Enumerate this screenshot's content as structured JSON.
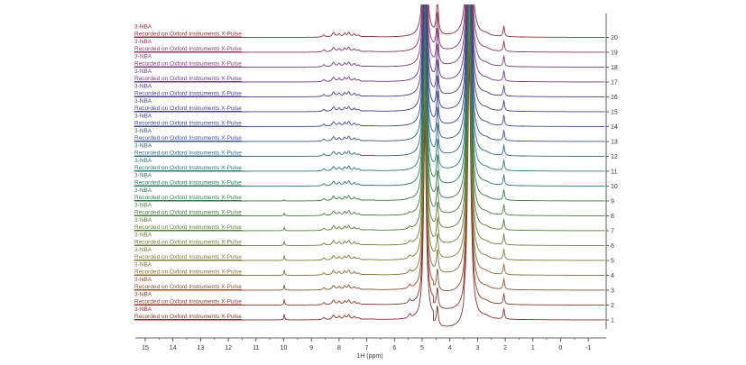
{
  "chart_data": {
    "type": "line",
    "title": "",
    "xlabel": "1H (ppm)",
    "ylabel": "",
    "xlim": [
      15.4,
      -1.6
    ],
    "xticks": [
      "15",
      "14",
      "13",
      "12",
      "11",
      "10",
      "9",
      "8",
      "7",
      "6",
      "5",
      "4",
      "3",
      "2",
      "1",
      "0",
      "-1"
    ],
    "trace_title": "3-NBA",
    "trace_subtitle": "Recorded on Oxford Instruments X-Pulse",
    "peaks": [
      {
        "ppm": 8.55,
        "height": 0.35,
        "width": 0.05
      },
      {
        "ppm": 8.2,
        "height": 0.7,
        "width": 0.06
      },
      {
        "ppm": 8.0,
        "height": 0.5,
        "width": 0.05
      },
      {
        "ppm": 7.8,
        "height": 0.55,
        "width": 0.05
      },
      {
        "ppm": 7.65,
        "height": 0.7,
        "width": 0.05
      },
      {
        "ppm": 7.45,
        "height": 0.45,
        "width": 0.05
      },
      {
        "ppm": 7.3,
        "height": 0.25,
        "width": 0.05
      },
      {
        "ppm": 6.9,
        "height": 0.1,
        "width": 0.25
      },
      {
        "ppm": 4.9,
        "height": 30,
        "width": 0.06
      },
      {
        "ppm": 4.45,
        "height": 3,
        "width": 0.04
      },
      {
        "ppm": 3.3,
        "height": 40,
        "width": 0.07
      },
      {
        "ppm": 2.7,
        "height": 0.3,
        "width": 0.15
      },
      {
        "ppm": 2.05,
        "height": 1.6,
        "width": 0.03
      }
    ],
    "transient_peaks": [
      {
        "ppm": 9.98,
        "height": 0.9,
        "width": 0.02
      },
      {
        "ppm": 5.45,
        "height": 0.6,
        "width": 0.05
      }
    ],
    "series": [
      {
        "name": "1",
        "color": "#8b2e2a",
        "transient": 1.0
      },
      {
        "name": "2",
        "color": "#8a3a2a",
        "transient": 0.95
      },
      {
        "name": "3",
        "color": "#8a5030",
        "transient": 0.9
      },
      {
        "name": "4",
        "color": "#8a6a35",
        "transient": 0.85
      },
      {
        "name": "5",
        "color": "#7f7a35",
        "transient": 0.8
      },
      {
        "name": "6",
        "color": "#6a7e35",
        "transient": 0.7
      },
      {
        "name": "7",
        "color": "#557e38",
        "transient": 0.6
      },
      {
        "name": "8",
        "color": "#447c3c",
        "transient": 0.45
      },
      {
        "name": "9",
        "color": "#357a45",
        "transient": 0.2
      },
      {
        "name": "10",
        "color": "#2a7a5a",
        "transient": 0.05
      },
      {
        "name": "11",
        "color": "#2a7a7a",
        "transient": 0
      },
      {
        "name": "12",
        "color": "#2e6a88",
        "transient": 0
      },
      {
        "name": "13",
        "color": "#35558e",
        "transient": 0
      },
      {
        "name": "14",
        "color": "#3a4a8e",
        "transient": 0
      },
      {
        "name": "15",
        "color": "#42428a",
        "transient": 0
      },
      {
        "name": "16",
        "color": "#503c88",
        "transient": 0
      },
      {
        "name": "17",
        "color": "#6a3a8a",
        "transient": 0
      },
      {
        "name": "18",
        "color": "#7e3a7e",
        "transient": 0
      },
      {
        "name": "19",
        "color": "#8a3560",
        "transient": 0
      },
      {
        "name": "20",
        "color": "#8b2e3a",
        "transient": 0
      }
    ]
  }
}
